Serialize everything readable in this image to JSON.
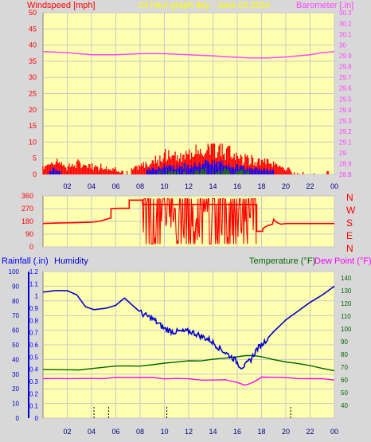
{
  "colors": {
    "page_bg": "#d8d8d8",
    "plot_bg": "#ffffb0",
    "grid": "#c8c8c8",
    "axis": "#808080",
    "windspeed": "#ff0000",
    "gust": "#0000ff",
    "wind_low": "#008000",
    "barometer": "#ff44ff",
    "direction": "#ff0000",
    "rainfall": "#0000ff",
    "humidity": "#0000cc",
    "temperature": "#006600",
    "dewpoint": "#ff00ff",
    "title": "#ffff00",
    "rain_marker": "#000000"
  },
  "header": {
    "windspeed_label": "Windspeed [mph]",
    "title": "24 hour graph day : June 03 2024",
    "barometer_label": "Barometer [.in]"
  },
  "compass": [
    "N",
    "W",
    "S",
    "E",
    "N"
  ],
  "bottom_labels": {
    "rainfall": "Rainfall (.in)",
    "humidity": "Humidity",
    "temperature": "Temperature (°F)",
    "dewpoint": "Dew Point (°F)"
  },
  "chart_data": [
    {
      "type": "line",
      "title": "24 hour graph day : June 03 2024",
      "ylabel": "Windspeed [mph]",
      "y2label": "Barometer [.in]",
      "x_ticks": [
        "02",
        "04",
        "06",
        "08",
        "10",
        "12",
        "14",
        "16",
        "18",
        "20",
        "22",
        "00"
      ],
      "ylim": [
        0,
        50
      ],
      "y_ticks": [
        0,
        5,
        10,
        15,
        20,
        25,
        30,
        35,
        40,
        45,
        50
      ],
      "y2lim": [
        28.8,
        30.3
      ],
      "y2_ticks": [
        "28.8",
        "28.9",
        "29",
        "29.1",
        "29.2",
        "29.3",
        "29.4",
        "29.5",
        "29.6",
        "29.7",
        "29.8",
        "29.9",
        "30",
        "30.1",
        "30.2",
        "30.3"
      ],
      "series": [
        {
          "name": "Barometer",
          "x": [
            0,
            2,
            4,
            6,
            8,
            10,
            12,
            14,
            15.5,
            17,
            18.5,
            20,
            21,
            22,
            23,
            24
          ],
          "values": [
            29.94,
            29.93,
            29.91,
            29.91,
            29.92,
            29.92,
            29.91,
            29.9,
            29.89,
            29.88,
            29.88,
            29.89,
            29.9,
            29.91,
            29.93,
            29.94
          ]
        },
        {
          "name": "Windspeed",
          "x": [
            0,
            1,
            2,
            3,
            4,
            5,
            6,
            7,
            8,
            9,
            10,
            11,
            12,
            13,
            14,
            15,
            16,
            17,
            18,
            19,
            20,
            21,
            22,
            23,
            24
          ],
          "values": [
            1,
            2,
            1,
            1.5,
            1,
            1,
            0.5,
            0,
            1,
            2,
            3,
            3,
            3.5,
            4,
            5,
            4,
            3,
            2.5,
            2,
            1.5,
            0.5,
            0,
            0,
            0,
            0
          ]
        }
      ]
    },
    {
      "type": "line",
      "ylabel": "Wind Direction",
      "ylim": [
        0,
        360
      ],
      "y_ticks": [
        0,
        90,
        180,
        270,
        360
      ],
      "series": [
        {
          "name": "Direction",
          "x": [
            0,
            1,
            2,
            3,
            4,
            4.6,
            5.6,
            5.6,
            6.2,
            7.1,
            7.1,
            7.7,
            8.2,
            8.2,
            17.6,
            17.6,
            18.1,
            18.1,
            18.5,
            18.9,
            19.0,
            19.2,
            19.6,
            20,
            22,
            24
          ],
          "values": [
            165,
            168,
            170,
            172,
            175,
            180,
            205,
            270,
            272,
            272,
            330,
            330,
            330,
            300,
            300,
            110,
            110,
            130,
            150,
            160,
            195,
            175,
            160,
            165,
            165,
            165
          ]
        }
      ]
    },
    {
      "type": "line",
      "ylabel": "Rainfall (.in)",
      "ylim": [
        0,
        1.2
      ],
      "y_ticks": [
        "0",
        "0.1",
        "0.2",
        "0.3",
        "0.4",
        "0.5",
        "0.6",
        "0.7",
        "0.8",
        "0.9",
        "1",
        "1.1",
        "1.2"
      ],
      "y_ticks_humidity": [
        0,
        10,
        20,
        30,
        40,
        50,
        60,
        70,
        80,
        90,
        100
      ],
      "y2lim": [
        30,
        145
      ],
      "y2_ticks": [
        40,
        50,
        60,
        70,
        80,
        90,
        100,
        110,
        120,
        130,
        140
      ],
      "series": [
        {
          "name": "Humidity",
          "x": [
            0,
            1,
            2,
            2.8,
            3.5,
            4.2,
            5.2,
            6,
            6.7,
            7.5,
            8.2,
            9,
            10,
            10.7,
            11.5,
            12.2,
            13,
            13.8,
            14.5,
            15.3,
            15.8,
            16.3,
            16.7,
            17.2,
            17.6,
            18,
            19,
            20,
            21,
            22,
            23,
            24
          ],
          "values": [
            86,
            87,
            87,
            84,
            76,
            74,
            75,
            77,
            82,
            76,
            71,
            68,
            61,
            59,
            59,
            59,
            56,
            53,
            48,
            43,
            40,
            35,
            36,
            41,
            47,
            50,
            59,
            67,
            73,
            79,
            84,
            90
          ]
        },
        {
          "name": "Temperature",
          "x": [
            0,
            2,
            3,
            4,
            5,
            6,
            7,
            8,
            9,
            10,
            11,
            12,
            13,
            14,
            15,
            16,
            16.7,
            17.3,
            18,
            19,
            20,
            21,
            22,
            23,
            24
          ],
          "values": [
            68,
            68,
            68,
            69,
            70,
            71,
            71,
            71,
            72,
            73,
            74,
            75,
            75,
            76,
            77,
            78,
            79,
            79,
            78,
            76,
            74,
            73,
            71,
            69,
            67
          ]
        },
        {
          "name": "Dew Point",
          "x": [
            0,
            1,
            2,
            3,
            4,
            5,
            6,
            7,
            8,
            9,
            10,
            11,
            12,
            13,
            14,
            15,
            15.5,
            16,
            16.3,
            16.6,
            17,
            17.5,
            18,
            19,
            20,
            21,
            22,
            23,
            24
          ],
          "values": [
            61,
            61,
            61,
            61,
            61,
            61,
            62,
            62,
            62,
            62,
            61,
            61,
            61,
            60,
            60,
            60,
            59,
            58,
            57,
            56,
            57,
            59,
            62,
            62,
            62,
            61,
            61,
            61,
            60
          ]
        }
      ],
      "rain_markers": [
        4.2,
        5.4,
        10.2,
        20.4
      ]
    }
  ]
}
